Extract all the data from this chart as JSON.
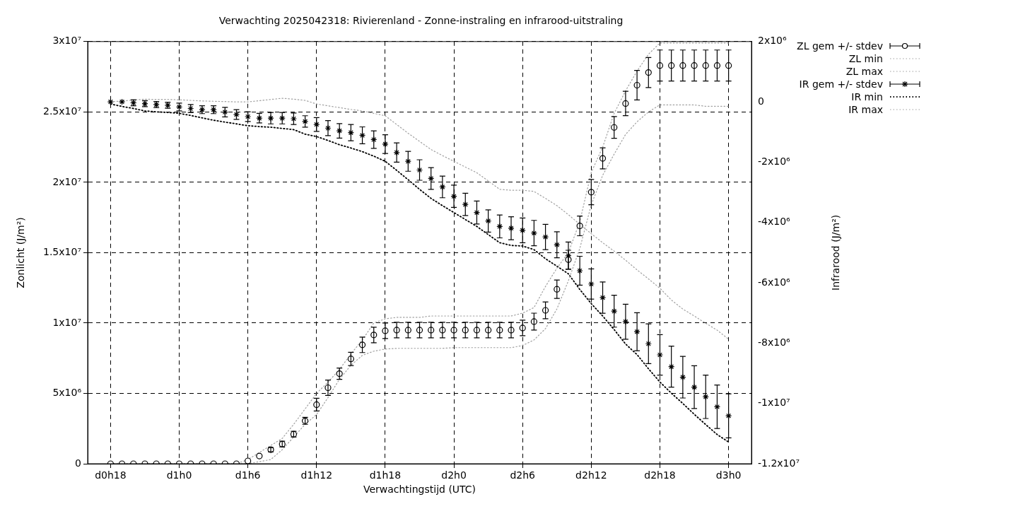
{
  "chart_data": {
    "type": "line",
    "title": "Verwachting 2025042318: Rivierenland - Zonne-instraling en infrarood-uitstraling",
    "xlabel": "Verwachtingstijd (UTC)",
    "ylabel": "Zonlicht (J/m²)",
    "y2label": "Infrarood (J/m²)",
    "categories": [
      "d0h18",
      null,
      null,
      null,
      null,
      null,
      "d1h0",
      null,
      null,
      null,
      null,
      null,
      "d1h6",
      null,
      null,
      null,
      null,
      null,
      "d1h12",
      null,
      null,
      null,
      null,
      null,
      "d1h18",
      null,
      null,
      null,
      null,
      null,
      "d2h0",
      null,
      null,
      null,
      null,
      null,
      "d2h6",
      null,
      null,
      null,
      null,
      null,
      "d2h12",
      null,
      null,
      null,
      null,
      null,
      "d2h18",
      null,
      null,
      null,
      null,
      null,
      "d3h0"
    ],
    "ylim": [
      0,
      30000000.0
    ],
    "yticks": [
      0,
      {
        "value": 5000000.0,
        "label": "5x10⁶"
      },
      {
        "value": 10000000.0,
        "label": "1x10⁷"
      },
      {
        "value": 15000000.0,
        "label": "1.5x10⁷"
      },
      {
        "value": 20000000.0,
        "label": "2x10⁷"
      },
      {
        "value": 25000000.0,
        "label": "2.5x10⁷"
      },
      {
        "value": 30000000.0,
        "label": "3x10⁷"
      }
    ],
    "y2lim": [
      -12000000.0,
      2000000.0
    ],
    "y2ticks": [
      {
        "value": 2000000.0,
        "label": "2x10⁶"
      },
      0,
      {
        "value": -2000000.0,
        "label": "-2x10⁶"
      },
      {
        "value": -4000000.0,
        "label": "-4x10⁶"
      },
      {
        "value": -6000000.0,
        "label": "-6x10⁶"
      },
      {
        "value": -8000000.0,
        "label": "-8x10⁶"
      },
      {
        "value": -10000000.0,
        "label": "-1x10⁷"
      },
      {
        "value": -12000000.0,
        "label": "-1.2x10⁷"
      }
    ],
    "grid": true,
    "legend": "top right",
    "series": [
      {
        "name": "ZL gem +/- stdev",
        "type": "scatter",
        "marker": "circle",
        "color": "#000000",
        "values": [
          0,
          0,
          0,
          0,
          0,
          0,
          0,
          0,
          0,
          0,
          0,
          0,
          200000.0,
          550000.0,
          1000000.0,
          1400000.0,
          2100000.0,
          3050000.0,
          4200000.0,
          5400000.0,
          6400000.0,
          7450000.0,
          8450000.0,
          9150000.0,
          9450000.0,
          9500000.0,
          9500000.0,
          9500000.0,
          9500000.0,
          9500000.0,
          9500000.0,
          9500000.0,
          9500000.0,
          9500000.0,
          9500000.0,
          9500000.0,
          9650000.0,
          10100000.0,
          10900000.0,
          12400000.0,
          14500000.0,
          16900000.0,
          19300000.0,
          21700000.0,
          23900000.0,
          25600000.0,
          26900000.0,
          27800000.0,
          28300000.0,
          28300000.0,
          28300000.0,
          28300000.0,
          28300000.0,
          28300000.0,
          28300000.0
        ],
        "errors": [
          null,
          null,
          null,
          null,
          null,
          null,
          null,
          null,
          null,
          null,
          null,
          null,
          null,
          null,
          150000.0,
          200000.0,
          200000.0,
          250000.0,
          450000.0,
          550000.0,
          400000.0,
          470000.0,
          550000.0,
          550000.0,
          550000.0,
          550000.0,
          550000.0,
          550000.0,
          550000.0,
          550000.0,
          550000.0,
          550000.0,
          550000.0,
          550000.0,
          550000.0,
          550000.0,
          550000.0,
          600000.0,
          600000.0,
          650000.0,
          670000.0,
          700000.0,
          900000.0,
          750000.0,
          770000.0,
          870000.0,
          1050000.0,
          1070000.0,
          1100000.0,
          1100000.0,
          1100000.0,
          1100000.0,
          1100000.0,
          1100000.0,
          1100000.0
        ]
      },
      {
        "name": "ZL min",
        "type": "line",
        "line_style": "dotted",
        "color": "#a0a0a0",
        "values": [
          0,
          0,
          0,
          0,
          0,
          0,
          0,
          0,
          0,
          0,
          0,
          0,
          0,
          150000.0,
          300000.0,
          1000000.0,
          1900000.0,
          2800000.0,
          3500000.0,
          4700000.0,
          6000000.0,
          7000000.0,
          7700000.0,
          8000000.0,
          8150000.0,
          8200000.0,
          8200000.0,
          8200000.0,
          8200000.0,
          8200000.0,
          8250000.0,
          8250000.0,
          8250000.0,
          8250000.0,
          8250000.0,
          8250000.0,
          8400000.0,
          8800000.0,
          9600000.0,
          11000000.0,
          13000000.0,
          15300000.0,
          18400000.0,
          20500000.0,
          22000000.0,
          23400000.0,
          24300000.0,
          25000000.0,
          25500000.0,
          25500000.0,
          25500000.0,
          25500000.0,
          25400000.0,
          25400000.0,
          25400000.0
        ]
      },
      {
        "name": "ZL max",
        "type": "line",
        "line_style": "dotted",
        "color": "#a0a0a0",
        "values": [
          0,
          0,
          0,
          0,
          0,
          0,
          0,
          0,
          0,
          0,
          0,
          0,
          300000.0,
          800000.0,
          1300000.0,
          1800000.0,
          2800000.0,
          3900000.0,
          5000000.0,
          5800000.0,
          6700000.0,
          7800000.0,
          8800000.0,
          10000000.0,
          10300000.0,
          10400000.0,
          10400000.0,
          10400000.0,
          10500000.0,
          10500000.0,
          10500000.0,
          10500000.0,
          10500000.0,
          10500000.0,
          10500000.0,
          10500000.0,
          10700000.0,
          11100000.0,
          12600000.0,
          13900000.0,
          15000000.0,
          17200000.0,
          20700000.0,
          22500000.0,
          24900000.0,
          26500000.0,
          27900000.0,
          29100000.0,
          29900000.0,
          29900000.0,
          29900000.0,
          29900000.0,
          29900000.0,
          29900000.0,
          29900000.0
        ]
      },
      {
        "name": "IR gem +/- stdev",
        "type": "scatter",
        "marker": "cross",
        "axis": "y2",
        "color": "#000000",
        "values": [
          0,
          0,
          -30000.0,
          -60000.0,
          -90000.0,
          -110000.0,
          -170000.0,
          -220000.0,
          -260000.0,
          -260000.0,
          -340000.0,
          -420000.0,
          -490000.0,
          -540000.0,
          -540000.0,
          -540000.0,
          -560000.0,
          -650000.0,
          -750000.0,
          -870000.0,
          -960000.0,
          -1020000.0,
          -1110000.0,
          -1250000.0,
          -1400000.0,
          -1680000.0,
          -1970000.0,
          -2260000.0,
          -2540000.0,
          -2820000.0,
          -3130000.0,
          -3400000.0,
          -3670000.0,
          -3950000.0,
          -4130000.0,
          -4190000.0,
          -4260000.0,
          -4350000.0,
          -4480000.0,
          -4740000.0,
          -5100000.0,
          -5600000.0,
          -6040000.0,
          -6490000.0,
          -6940000.0,
          -7290000.0,
          -7620000.0,
          -8020000.0,
          -8390000.0,
          -8780000.0,
          -9130000.0,
          -9460000.0,
          -9780000.0,
          -10110000.0,
          -10410000.0
        ],
        "errors": [
          null,
          null,
          100000.0,
          100000.0,
          100000.0,
          100000.0,
          130000.0,
          130000.0,
          130000.0,
          130000.0,
          160000.0,
          160000.0,
          160000.0,
          160000.0,
          190000.0,
          190000.0,
          190000.0,
          190000.0,
          230000.0,
          250000.0,
          240000.0,
          270000.0,
          280000.0,
          290000.0,
          310000.0,
          320000.0,
          330000.0,
          340000.0,
          360000.0,
          360000.0,
          370000.0,
          370000.0,
          380000.0,
          370000.0,
          380000.0,
          380000.0,
          410000.0,
          420000.0,
          420000.0,
          430000.0,
          450000.0,
          480000.0,
          500000.0,
          520000.0,
          530000.0,
          580000.0,
          630000.0,
          660000.0,
          670000.0,
          680000.0,
          690000.0,
          710000.0,
          720000.0,
          720000.0,
          730000.0
        ]
      },
      {
        "name": "IR min",
        "type": "line",
        "line_style": "dotted",
        "axis": "y2",
        "color": "#000000",
        "values": [
          -70000.0,
          -150000.0,
          -220000.0,
          -300000.0,
          -330000.0,
          -350000.0,
          -380000.0,
          -450000.0,
          -530000.0,
          -610000.0,
          -670000.0,
          -730000.0,
          -790000.0,
          -820000.0,
          -840000.0,
          -880000.0,
          -920000.0,
          -1070000.0,
          -1150000.0,
          -1280000.0,
          -1420000.0,
          -1530000.0,
          -1650000.0,
          -1800000.0,
          -1970000.0,
          -2270000.0,
          -2580000.0,
          -2900000.0,
          -3200000.0,
          -3440000.0,
          -3670000.0,
          -3900000.0,
          -4130000.0,
          -4400000.0,
          -4670000.0,
          -4760000.0,
          -4780000.0,
          -4900000.0,
          -5200000.0,
          -5450000.0,
          -5700000.0,
          -6220000.0,
          -6690000.0,
          -7100000.0,
          -7550000.0,
          -8030000.0,
          -8380000.0,
          -8850000.0,
          -9290000.0,
          -9660000.0,
          -10000000.0,
          -10360000.0,
          -10700000.0,
          -11030000.0,
          -11280000.0
        ]
      },
      {
        "name": "IR max",
        "type": "line",
        "line_style": "dotted",
        "axis": "y2",
        "color": "#a0a0a0",
        "values": [
          0,
          30000.0,
          60000.0,
          90000.0,
          80000.0,
          80000.0,
          70000.0,
          50000.0,
          30000.0,
          20000.0,
          10000.0,
          0,
          0,
          40000.0,
          80000.0,
          120000.0,
          90000.0,
          50000.0,
          -70000.0,
          -130000.0,
          -190000.0,
          -250000.0,
          -300000.0,
          -380000.0,
          -460000.0,
          -750000.0,
          -1040000.0,
          -1310000.0,
          -1580000.0,
          -1780000.0,
          -1970000.0,
          -2160000.0,
          -2350000.0,
          -2620000.0,
          -2900000.0,
          -2930000.0,
          -2930000.0,
          -2970000.0,
          -3200000.0,
          -3440000.0,
          -3740000.0,
          -4060000.0,
          -4370000.0,
          -4670000.0,
          -4950000.0,
          -5250000.0,
          -5570000.0,
          -5870000.0,
          -6180000.0,
          -6570000.0,
          -6870000.0,
          -7100000.0,
          -7340000.0,
          -7570000.0,
          -7870000.0
        ]
      }
    ]
  }
}
